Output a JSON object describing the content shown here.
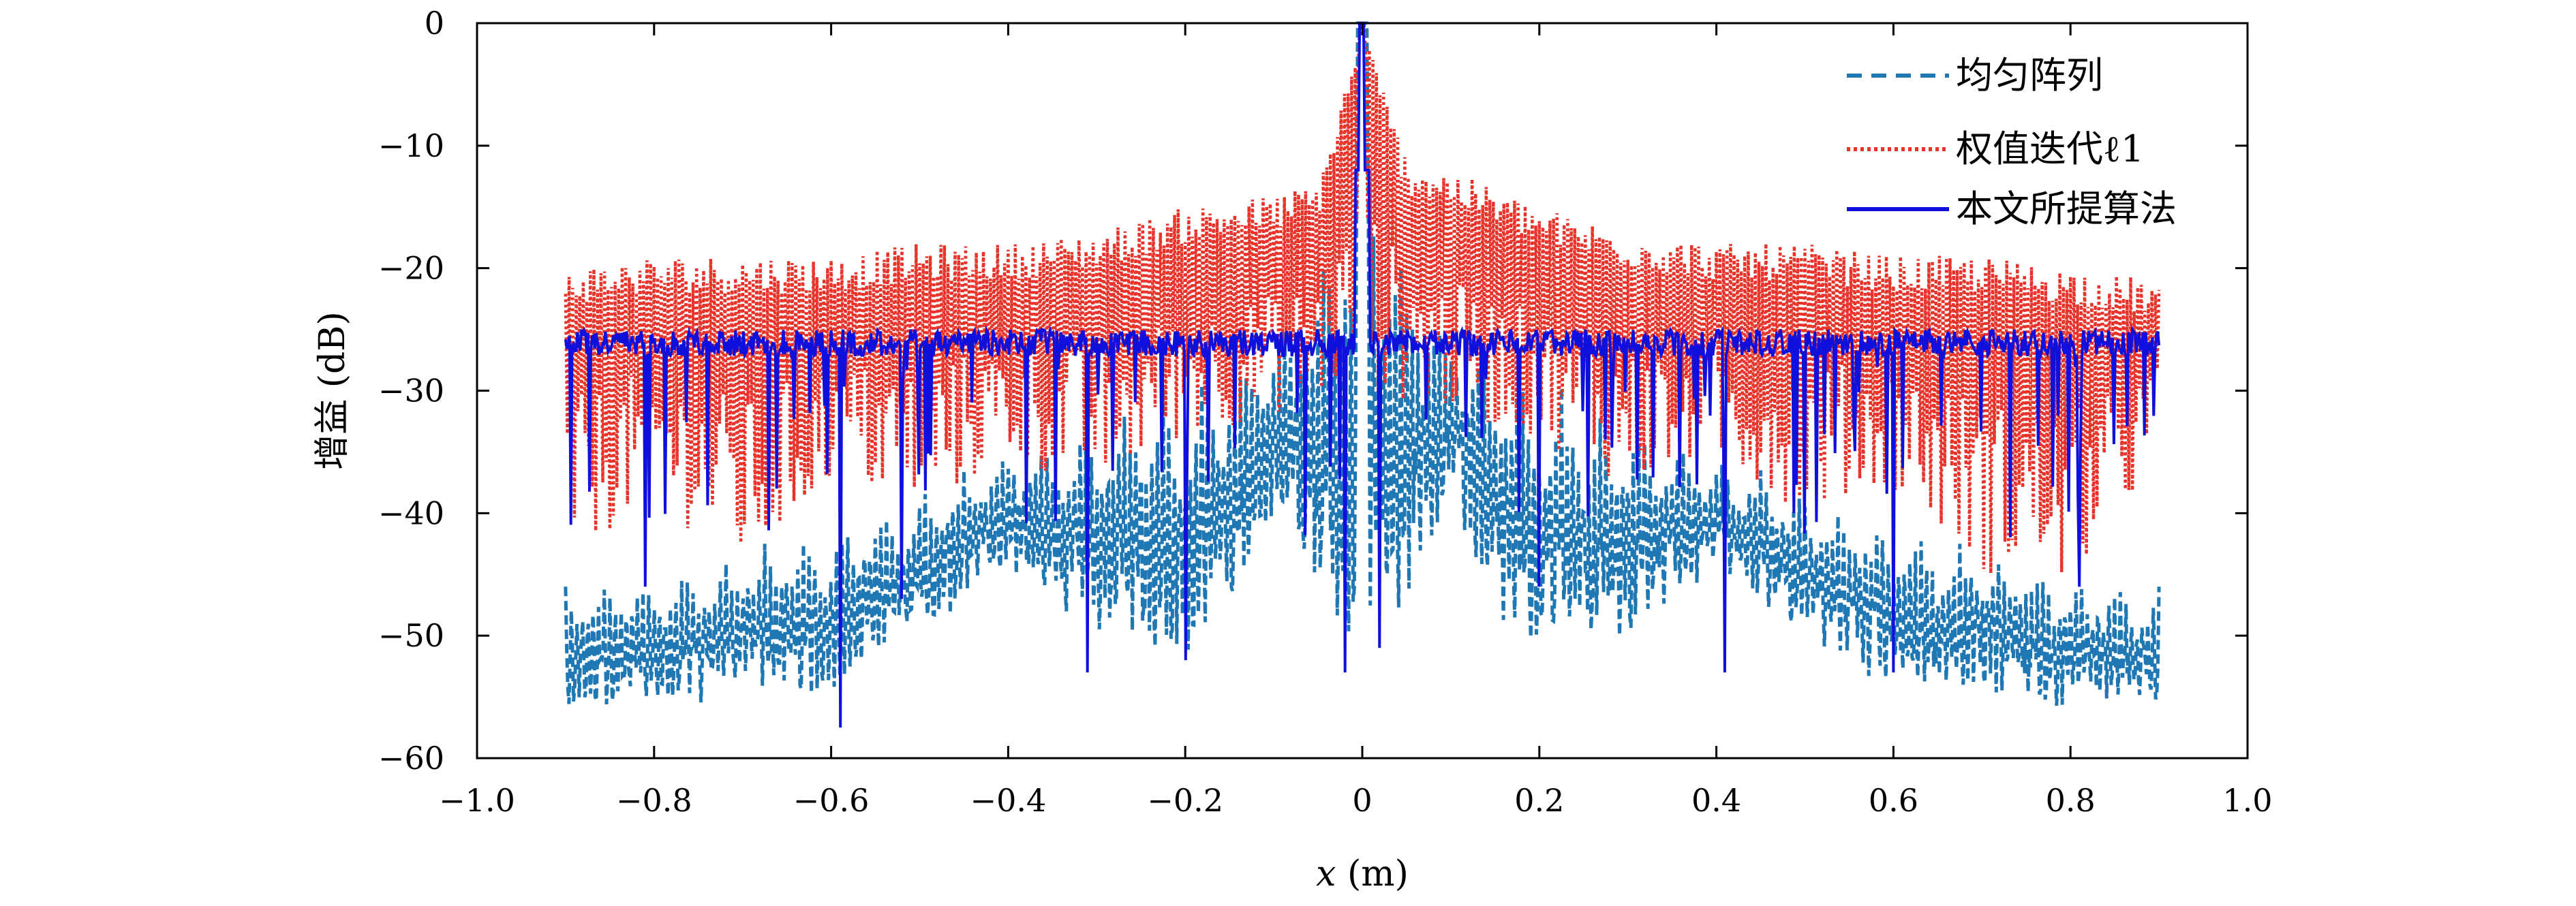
{
  "chart_data": {
    "type": "line",
    "title": "",
    "xlabel": {
      "var": "x",
      "unit": " (m)"
    },
    "ylabel": {
      "text": "增益",
      "unit": " (dB)"
    },
    "xlim": [
      -1.0,
      1.0
    ],
    "ylim": [
      -60,
      0
    ],
    "x_ticks": [
      -1.0,
      -0.8,
      -0.6,
      -0.4,
      -0.2,
      0,
      0.2,
      0.4,
      0.6,
      0.8,
      1.0
    ],
    "x_tick_labels": [
      "−1.0",
      "−0.8",
      "−0.6",
      "−0.4",
      "−0.2",
      "0",
      "0.2",
      "0.4",
      "0.6",
      "0.8",
      "1.0"
    ],
    "y_ticks": [
      0,
      -10,
      -20,
      -30,
      -40,
      -50,
      -60
    ],
    "y_tick_labels": [
      "0",
      "−10",
      "−20",
      "−30",
      "−40",
      "−50",
      "−60"
    ],
    "grid": false,
    "legend_position": "top-right",
    "x_range_of_data": [
      -0.9,
      0.9
    ],
    "series": [
      {
        "name": "均匀阵列",
        "color": "#1f77b4",
        "style": "dashed",
        "x": [
          -0.9,
          -0.8,
          -0.7,
          -0.6,
          -0.5,
          -0.4,
          -0.3,
          -0.2,
          -0.15,
          -0.1,
          -0.05,
          -0.02,
          0,
          0.02,
          0.05,
          0.1,
          0.15,
          0.2,
          0.3,
          0.4,
          0.5,
          0.6,
          0.7,
          0.8,
          0.9
        ],
        "upper": [
          -46,
          -45,
          -43,
          -41,
          -38,
          -35,
          -32,
          -29,
          -27,
          -25,
          -19,
          -12,
          0,
          -12,
          -19,
          -25,
          -27,
          -29,
          -32,
          -35,
          -38,
          -41,
          -43,
          -45,
          -46
        ],
        "lower": [
          -56,
          -56,
          -55,
          -55,
          -50,
          -45,
          -50,
          -53,
          -48,
          -40,
          -48,
          -55,
          -50,
          -55,
          -48,
          -40,
          -48,
          -53,
          -50,
          -45,
          -50,
          -55,
          -55,
          -56,
          -56
        ]
      },
      {
        "name": "权值迭代ℓ1",
        "color": "#e8332a",
        "style": "dotted",
        "x": [
          -0.9,
          -0.8,
          -0.7,
          -0.6,
          -0.5,
          -0.4,
          -0.3,
          -0.2,
          -0.1,
          -0.05,
          0,
          0.05,
          0.1,
          0.2,
          0.3,
          0.4,
          0.5,
          0.6,
          0.7,
          0.8,
          0.9
        ],
        "upper": [
          -20,
          -19,
          -19,
          -19,
          -18,
          -18,
          -17,
          -15,
          -14,
          -13,
          0,
          -11,
          -12,
          -15,
          -17,
          -18,
          -18,
          -19,
          -19,
          -20,
          -21
        ],
        "lower": [
          -44,
          -39,
          -45,
          -38,
          -40,
          -36,
          -38,
          -34,
          -32,
          -31,
          -30,
          -31,
          -32,
          -34,
          -38,
          -36,
          -40,
          -38,
          -45,
          -46,
          -36
        ]
      },
      {
        "name": "本文所提算法",
        "color": "#1010dd",
        "style": "solid",
        "x": [
          -0.9,
          -0.8,
          -0.7,
          -0.6,
          -0.5,
          -0.4,
          -0.3,
          -0.2,
          -0.1,
          0,
          0.1,
          0.2,
          0.3,
          0.4,
          0.5,
          0.6,
          0.7,
          0.8,
          0.9
        ],
        "baseline": [
          -25.5,
          -25.5,
          -25.5,
          -25.5,
          -25.5,
          -25.5,
          -25.5,
          -25.5,
          -25.5,
          0,
          -25.5,
          -25.5,
          -25.5,
          -25.5,
          -25.5,
          -25.5,
          -25.5,
          -25.5,
          -25.5
        ],
        "notable_nulls": [
          {
            "x": -0.81,
            "y": -46
          },
          {
            "x": -0.59,
            "y": -57.5
          },
          {
            "x": -0.52,
            "y": -47
          },
          {
            "x": -0.31,
            "y": -53
          },
          {
            "x": -0.2,
            "y": -52
          },
          {
            "x": -0.02,
            "y": -53
          },
          {
            "x": 0.02,
            "y": -51
          },
          {
            "x": 0.2,
            "y": -46
          },
          {
            "x": 0.41,
            "y": -53
          },
          {
            "x": 0.6,
            "y": -53
          },
          {
            "x": 0.81,
            "y": -46
          }
        ]
      }
    ]
  }
}
